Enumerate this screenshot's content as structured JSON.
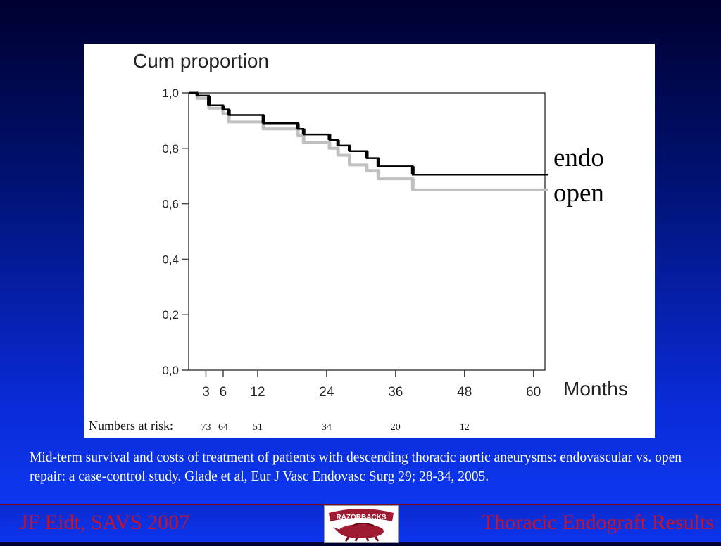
{
  "chart_data": {
    "type": "line",
    "title": "Cum proportion",
    "xlabel": "Months",
    "ylabel": "Cum proportion",
    "x_ticks": [
      3,
      6,
      12,
      24,
      36,
      48,
      60
    ],
    "y_ticks": [
      "1,0",
      "0,8",
      "0,6",
      "0,4",
      "0,2",
      "0,0"
    ],
    "y_tick_values": [
      1.0,
      0.8,
      0.6,
      0.4,
      0.2,
      0.0
    ],
    "xlim": [
      0,
      62
    ],
    "ylim": [
      0,
      1.0
    ],
    "grid": false,
    "legend_placement": "right",
    "series": [
      {
        "name": "endo",
        "color": "#000000",
        "x": [
          0,
          1.5,
          1.5,
          3.5,
          3.5,
          6,
          6,
          7,
          7,
          13,
          13,
          19,
          19,
          20,
          20,
          24.5,
          24.5,
          26,
          26,
          28,
          28,
          31,
          31,
          33,
          33,
          39,
          39,
          62
        ],
        "y": [
          1.0,
          1.0,
          0.99,
          0.99,
          0.955,
          0.955,
          0.94,
          0.94,
          0.92,
          0.92,
          0.89,
          0.89,
          0.87,
          0.87,
          0.85,
          0.85,
          0.83,
          0.83,
          0.81,
          0.81,
          0.79,
          0.79,
          0.765,
          0.765,
          0.735,
          0.735,
          0.705,
          0.705
        ]
      },
      {
        "name": "open",
        "color": "#c0c0c0",
        "x": [
          0,
          1.5,
          1.5,
          3.5,
          3.5,
          6,
          6,
          7,
          7,
          13,
          13,
          19,
          19,
          20,
          20,
          24.5,
          24.5,
          26,
          26,
          28,
          28,
          31,
          31,
          33,
          33,
          39,
          39,
          62
        ],
        "y": [
          1.0,
          1.0,
          0.98,
          0.98,
          0.945,
          0.945,
          0.925,
          0.925,
          0.895,
          0.895,
          0.87,
          0.87,
          0.845,
          0.845,
          0.82,
          0.82,
          0.8,
          0.8,
          0.775,
          0.775,
          0.74,
          0.74,
          0.72,
          0.72,
          0.69,
          0.69,
          0.65,
          0.65
        ]
      }
    ],
    "numbers_at_risk": {
      "label": "Numbers at risk:",
      "values": [
        {
          "x": 3,
          "n": "73"
        },
        {
          "x": 6,
          "n": "64"
        },
        {
          "x": 12,
          "n": "51"
        },
        {
          "x": 24,
          "n": "34"
        },
        {
          "x": 36,
          "n": "20"
        },
        {
          "x": 48,
          "n": "12"
        }
      ]
    }
  },
  "legend": {
    "endo": "endo",
    "open": "open"
  },
  "caption": "Mid-term survival and costs of treatment of patients with descending thoracic aortic aneurysms: endovascular vs. open repair: a case-control study. Glade et al, Eur J Vasc Endovasc Surg 29; 28-34, 2005.",
  "footer": {
    "author": "JF Eidt, SAVS 2007",
    "title": "Thoracic Endograft Results",
    "logo_text": "RAZORBACKS"
  },
  "colors": {
    "footer_text": "#c4122f",
    "caption_text": "#ffffff"
  }
}
